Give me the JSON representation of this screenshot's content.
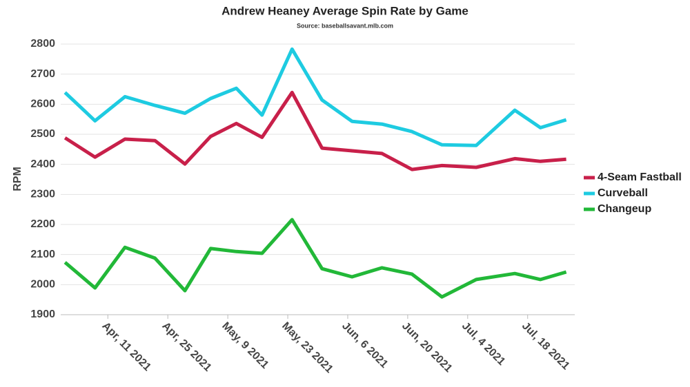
{
  "chart_data": {
    "type": "line",
    "title": "Andrew Heaney Average Spin Rate by Game",
    "subtitle": "Source: baseballsavant.mlb.com",
    "y_label": "RPM",
    "x": [
      "2021-04-01",
      "2021-04-08",
      "2021-04-15",
      "2021-04-22",
      "2021-04-29",
      "2021-05-05",
      "2021-05-11",
      "2021-05-17",
      "2021-05-24",
      "2021-05-31",
      "2021-06-07",
      "2021-06-14",
      "2021-06-21",
      "2021-06-28",
      "2021-07-06",
      "2021-07-15",
      "2021-07-21",
      "2021-07-27"
    ],
    "series": [
      {
        "name": "4-Seam Fastball",
        "color": "#c8204a",
        "values": [
          2488,
          2424,
          2484,
          2479,
          2401,
          2493,
          2536,
          2490,
          2639,
          2454,
          2445,
          2436,
          2383,
          2396,
          2390,
          2419,
          2410,
          2417
        ]
      },
      {
        "name": "Curveball",
        "color": "#1ecbe1",
        "values": [
          2639,
          2545,
          2625,
          2596,
          2570,
          2619,
          2653,
          2564,
          2783,
          2614,
          2543,
          2534,
          2509,
          2465,
          2463,
          2580,
          2522,
          2548
        ]
      },
      {
        "name": "Changeup",
        "color": "#22b838",
        "values": [
          2074,
          1989,
          2124,
          2088,
          1980,
          2120,
          2110,
          2104,
          2216,
          2053,
          2026,
          2056,
          2035,
          1959,
          2017,
          2037,
          2017,
          2042
        ]
      }
    ],
    "xlim": [
      "2021-03-31",
      "2021-07-29"
    ],
    "xticks": [
      {
        "value": "2021-04-11",
        "label": "Apr, 11 2021"
      },
      {
        "value": "2021-04-25",
        "label": "Apr, 25 2021"
      },
      {
        "value": "2021-05-09",
        "label": "May, 9 2021"
      },
      {
        "value": "2021-05-23",
        "label": "May, 23 2021"
      },
      {
        "value": "2021-06-06",
        "label": "Jun, 6 2021"
      },
      {
        "value": "2021-06-20",
        "label": "Jun, 20 2021"
      },
      {
        "value": "2021-07-04",
        "label": "Jul, 4 2021"
      },
      {
        "value": "2021-07-18",
        "label": "Jul, 18 2021"
      }
    ],
    "ylim": [
      1900,
      2800
    ],
    "yticks": [
      1900,
      2000,
      2100,
      2200,
      2300,
      2400,
      2500,
      2600,
      2700,
      2800
    ],
    "grid": true,
    "legend": "right"
  }
}
